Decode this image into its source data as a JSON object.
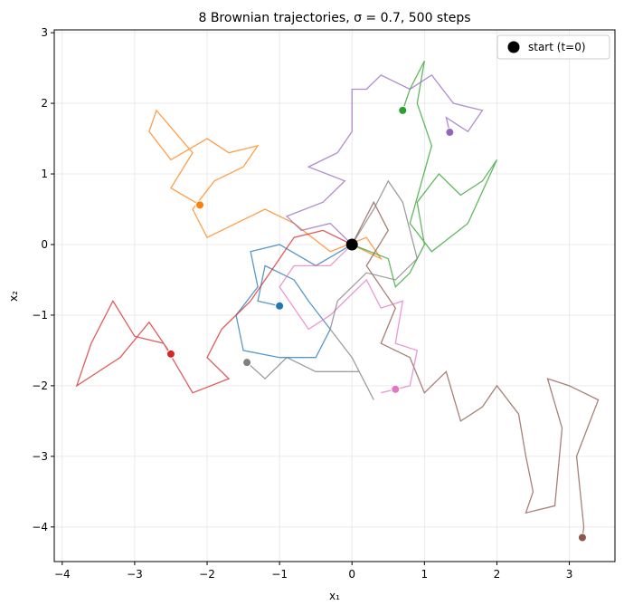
{
  "chart_data": {
    "type": "line",
    "title": "8 Brownian trajectories, σ = 0.7, 500 steps",
    "x_label": "x₁",
    "y_label": "x₂",
    "xlim": [
      -4.11,
      3.63
    ],
    "ylim": [
      -4.49,
      3.04
    ],
    "xticks": [
      {
        "value": -4,
        "label": "−4"
      },
      {
        "value": -3,
        "label": "−3"
      },
      {
        "value": -2,
        "label": "−2"
      },
      {
        "value": -1,
        "label": "−1"
      },
      0,
      1,
      2,
      3
    ],
    "yticks": [
      {
        "value": -4,
        "label": "−4"
      },
      {
        "value": -3,
        "label": "−3"
      },
      {
        "value": -2,
        "label": "−2"
      },
      {
        "value": -1,
        "label": "−1"
      },
      0,
      1,
      2,
      3
    ],
    "grid": true,
    "legend_position": "upper right",
    "start": {
      "name": "start (t=0)",
      "color": "#000000",
      "x": 0,
      "y": 0
    },
    "series": [
      {
        "color": "#1f77b4",
        "x": [
          0,
          -0.5,
          -1.0,
          -1.4,
          -1.3,
          -1.6,
          -1.5,
          -1.0,
          -0.5,
          -0.3,
          -0.6,
          -0.8,
          -1.2,
          -1.3,
          -1.0
        ],
        "values": [
          0,
          -0.3,
          0.0,
          -0.1,
          -0.6,
          -1.0,
          -1.5,
          -1.6,
          -1.6,
          -1.2,
          -0.8,
          -0.5,
          -0.3,
          -0.8,
          -0.87
        ]
      },
      {
        "color": "#ff7f0e",
        "x": [
          0,
          0.4,
          0.2,
          -0.3,
          -0.8,
          -1.2,
          -1.6,
          -2.0,
          -2.2,
          -1.9,
          -1.5,
          -1.3,
          -1.7,
          -2.0,
          -2.5,
          -2.8,
          -2.7,
          -2.2,
          -2.5,
          -2.1
        ],
        "values": [
          0,
          -0.2,
          0.1,
          -0.1,
          0.3,
          0.5,
          0.3,
          0.1,
          0.5,
          0.9,
          1.1,
          1.4,
          1.3,
          1.5,
          1.2,
          1.6,
          1.9,
          1.3,
          0.8,
          0.56
        ]
      },
      {
        "color": "#2ca02c",
        "x": [
          0,
          0.5,
          0.6,
          0.8,
          1.0,
          0.9,
          1.2,
          1.5,
          1.8,
          2.0,
          1.6,
          1.1,
          0.8,
          1.1,
          0.9,
          1.0,
          0.8,
          0.7
        ],
        "values": [
          0,
          -0.2,
          -0.6,
          -0.4,
          0.0,
          0.6,
          1.0,
          0.7,
          0.9,
          1.2,
          0.3,
          -0.1,
          0.3,
          1.4,
          2.0,
          2.6,
          2.2,
          1.9
        ]
      },
      {
        "color": "#d62728",
        "x": [
          0,
          -0.4,
          -0.8,
          -1.0,
          -1.2,
          -1.4,
          -1.8,
          -2.0,
          -1.7,
          -2.2,
          -2.6,
          -3.0,
          -3.3,
          -3.6,
          -3.8,
          -3.2,
          -2.8,
          -2.5
        ],
        "values": [
          0,
          0.2,
          0.1,
          -0.2,
          -0.5,
          -0.8,
          -1.2,
          -1.6,
          -1.9,
          -2.1,
          -1.4,
          -1.3,
          -0.8,
          -1.4,
          -2.0,
          -1.6,
          -1.1,
          -1.55
        ]
      },
      {
        "color": "#9467bd",
        "x": [
          0,
          -0.3,
          -0.7,
          -0.9,
          -0.4,
          -0.1,
          -0.6,
          -0.2,
          0.0,
          0.0,
          0.2,
          0.4,
          0.8,
          1.1,
          1.4,
          1.8,
          1.6,
          1.3,
          1.35
        ],
        "values": [
          0,
          0.3,
          0.2,
          0.4,
          0.6,
          0.9,
          1.1,
          1.3,
          1.6,
          2.2,
          2.2,
          2.4,
          2.2,
          2.4,
          2.0,
          1.9,
          1.6,
          1.8,
          1.59
        ]
      },
      {
        "color": "#8c564b",
        "x": [
          0,
          0.3,
          0.5,
          0.2,
          0.6,
          0.4,
          0.8,
          1.0,
          1.3,
          1.5,
          1.8,
          2.0,
          2.3,
          2.4,
          2.5,
          2.4,
          2.8,
          2.9,
          2.7,
          3.0,
          3.4,
          3.1,
          3.2,
          3.18
        ],
        "values": [
          0,
          0.6,
          0.2,
          -0.3,
          -0.9,
          -1.4,
          -1.6,
          -2.1,
          -1.8,
          -2.5,
          -2.3,
          -2.0,
          -2.4,
          -3.0,
          -3.5,
          -3.8,
          -3.7,
          -2.6,
          -1.9,
          -2.0,
          -2.2,
          -3.0,
          -4.0,
          -4.15
        ]
      },
      {
        "color": "#e377c2",
        "x": [
          0,
          -0.3,
          -0.8,
          -1.0,
          -0.6,
          -0.3,
          0.2,
          0.4,
          0.7,
          0.6,
          0.9,
          0.8,
          0.4,
          0.6
        ],
        "values": [
          0,
          -0.3,
          -0.3,
          -0.6,
          -1.2,
          -1.0,
          -0.5,
          -0.9,
          -0.8,
          -1.4,
          -1.5,
          -2.0,
          -2.1,
          -2.05
        ]
      },
      {
        "color": "#7f7f7f",
        "x": [
          0,
          0.3,
          0.5,
          0.7,
          0.9,
          0.6,
          0.2,
          -0.2,
          -0.3,
          0.0,
          0.3,
          0.1,
          -0.5,
          -0.9,
          -1.2,
          -1.45
        ],
        "values": [
          0,
          0.5,
          0.9,
          0.6,
          -0.2,
          -0.5,
          -0.4,
          -0.8,
          -1.2,
          -1.6,
          -2.2,
          -1.8,
          -1.8,
          -1.6,
          -1.9,
          -1.67
        ]
      }
    ]
  }
}
